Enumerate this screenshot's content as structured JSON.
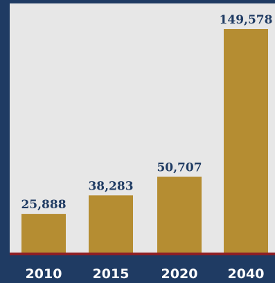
{
  "chart_data": {
    "type": "bar",
    "categories": [
      "2010",
      "2015",
      "2020",
      "2040"
    ],
    "values": [
      25888,
      38283,
      50707,
      149578
    ],
    "value_labels": [
      "25,888",
      "38,283",
      "50,707",
      "149,578"
    ],
    "ylim": [
      0,
      155000
    ],
    "grid": false,
    "legend": "none"
  },
  "colors": {
    "background": "#1f3b63",
    "plot_area": "#e7e7e7",
    "bar": "#b58d32",
    "baseline": "#8e1f25",
    "value_label": "#1f3b63",
    "tick_label": "#ffffff"
  }
}
